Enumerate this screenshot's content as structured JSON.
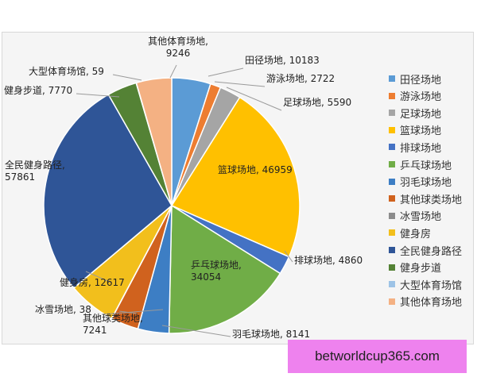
{
  "chart_data": {
    "type": "pie",
    "title": "",
    "slices": [
      {
        "label": "田径场地",
        "value": 10183,
        "color": "#5b9bd5"
      },
      {
        "label": "游泳场地",
        "value": 2722,
        "color": "#ed7d31"
      },
      {
        "label": "足球场地",
        "value": 5590,
        "color": "#a5a5a5"
      },
      {
        "label": "篮球场地",
        "value": 46959,
        "color": "#ffc000"
      },
      {
        "label": "排球场地",
        "value": 4860,
        "color": "#4472c4"
      },
      {
        "label": "乒乓球场地",
        "value": 34054,
        "color": "#70ad47"
      },
      {
        "label": "羽毛球场地",
        "value": 8141,
        "color": "#3d7ec4"
      },
      {
        "label": "其他球类场地",
        "value": 7241,
        "color": "#d0621e"
      },
      {
        "label": "冰雪场地",
        "value": 38,
        "color": "#8c8c8c"
      },
      {
        "label": "健身房",
        "value": 12617,
        "color": "#f2bf1c"
      },
      {
        "label": "全民健身路径",
        "value": 57861,
        "color": "#2f5597"
      },
      {
        "label": "健身步道",
        "value": 7770,
        "color": "#548235"
      },
      {
        "label": "大型体育场馆",
        "value": 59,
        "color": "#9dc3e6"
      },
      {
        "label": "其他体育场地",
        "value": 9246,
        "color": "#f4b183"
      }
    ],
    "data_labels": [
      {
        "lines": [
          "田径场地, 10183"
        ]
      },
      {
        "lines": [
          "游泳场地, 2722"
        ]
      },
      {
        "lines": [
          "足球场地, 5590"
        ]
      },
      {
        "lines": [
          "篮球场地, 46959"
        ]
      },
      {
        "lines": [
          "排球场地, 4860"
        ]
      },
      {
        "lines": [
          "乒乓球场地,",
          "34054"
        ]
      },
      {
        "lines": [
          "羽毛球场地, 8141"
        ]
      },
      {
        "lines": [
          "其他球类场地,",
          "7241"
        ]
      },
      {
        "lines": [
          "冰雪场地, 38"
        ]
      },
      {
        "lines": [
          "健身房, 12617"
        ]
      },
      {
        "lines": [
          "全民健身路径,",
          "57861"
        ]
      },
      {
        "lines": [
          "健身步道, 7770"
        ]
      },
      {
        "lines": [
          "大型体育场馆, 59"
        ]
      },
      {
        "lines": [
          "其他体育场地,",
          "9246"
        ]
      }
    ],
    "legend_position": "right",
    "legend": [
      "田径场地",
      "游泳场地",
      "足球场地",
      "篮球场地",
      "排球场地",
      "乒乓球场地",
      "羽毛球场地",
      "其他球类场地",
      "冰雪场地",
      "健身房",
      "全民健身路径",
      "健身步道",
      "大型体育场馆",
      "其他体育场地"
    ]
  },
  "watermark": {
    "text": "betworldcup365.com",
    "color": "#ee82ee"
  }
}
